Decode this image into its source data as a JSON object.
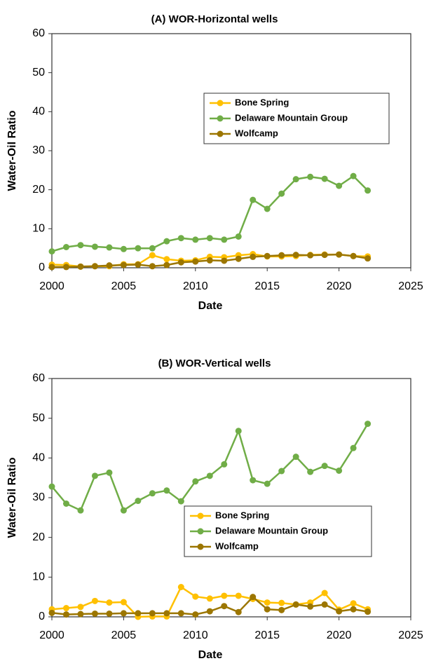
{
  "chart_data": [
    {
      "type": "line",
      "title": "(A) WOR-Horizontal wells",
      "x_label": "Date",
      "y_label": "Water-Oil Ratio",
      "x": [
        2000,
        2001,
        2002,
        2003,
        2004,
        2005,
        2006,
        2007,
        2008,
        2009,
        2010,
        2011,
        2012,
        2013,
        2014,
        2015,
        2016,
        2017,
        2018,
        2019,
        2020,
        2021,
        2022
      ],
      "series": [
        {
          "name": "Bone Spring",
          "color": "#ffc000",
          "values": [
            0.8,
            0.7,
            0.3,
            0.4,
            0.4,
            0.9,
            0.9,
            3.2,
            2.2,
            1.8,
            1.9,
            2.8,
            2.7,
            3.2,
            3.5,
            2.9,
            2.9,
            3.0,
            3.3,
            3.4,
            3.4,
            3.0,
            2.9
          ]
        },
        {
          "name": "Delaware Mountain Group",
          "color": "#70ad47",
          "values": [
            4.2,
            5.3,
            5.8,
            5.4,
            5.2,
            4.8,
            5.0,
            5.0,
            6.8,
            7.6,
            7.2,
            7.6,
            7.2,
            8.0,
            17.4,
            15.1,
            19.0,
            22.7,
            23.3,
            22.8,
            21.0,
            23.5,
            19.8
          ]
        },
        {
          "name": "Wolfcamp",
          "color": "#9c7600",
          "values": [
            0.2,
            0.2,
            0.3,
            0.4,
            0.6,
            0.7,
            0.8,
            0.4,
            0.7,
            1.4,
            1.6,
            1.9,
            1.8,
            2.3,
            2.8,
            3.0,
            3.2,
            3.3,
            3.2,
            3.3,
            3.4,
            3.0,
            2.4
          ]
        }
      ],
      "xlim": [
        2000,
        2025
      ],
      "xticks": [
        2000,
        2005,
        2010,
        2015,
        2020,
        2025
      ],
      "ylim": [
        0,
        60
      ],
      "yticks": [
        0,
        10,
        20,
        30,
        40,
        50,
        60
      ],
      "legend": "upper right"
    },
    {
      "type": "line",
      "title": "(B) WOR-Vertical wells",
      "x_label": "Date",
      "y_label": "Water-Oil Ratio",
      "x": [
        2000,
        2001,
        2002,
        2003,
        2004,
        2005,
        2006,
        2007,
        2008,
        2009,
        2010,
        2011,
        2012,
        2013,
        2014,
        2015,
        2016,
        2017,
        2018,
        2019,
        2020,
        2021,
        2022
      ],
      "series": [
        {
          "name": "Bone Spring",
          "color": "#ffc000",
          "values": [
            1.9,
            2.2,
            2.5,
            4.0,
            3.6,
            3.7,
            0,
            0.1,
            0.1,
            7.5,
            5.1,
            4.6,
            5.3,
            5.3,
            4.5,
            3.6,
            3.5,
            3.1,
            3.6,
            6.0,
            1.8,
            3.4,
            1.9
          ]
        },
        {
          "name": "Delaware Mountain Group",
          "color": "#70ad47",
          "values": [
            32.8,
            28.5,
            26.8,
            35.5,
            36.3,
            26.8,
            29.2,
            31.1,
            31.8,
            29.1,
            34.1,
            35.5,
            38.4,
            46.8,
            34.4,
            33.5,
            36.7,
            40.3,
            36.5,
            38.0,
            36.8,
            42.5,
            48.6
          ]
        },
        {
          "name": "Wolfcamp",
          "color": "#9c7600",
          "values": [
            1.0,
            0.6,
            0.7,
            0.8,
            0.8,
            0.9,
            0.9,
            0.9,
            0.9,
            0.9,
            0.6,
            1.4,
            2.7,
            1.2,
            5.0,
            1.9,
            1.7,
            3.1,
            2.6,
            3.1,
            1.4,
            1.9,
            1.3
          ]
        }
      ],
      "xlim": [
        2000,
        2025
      ],
      "xticks": [
        2000,
        2005,
        2010,
        2015,
        2020,
        2025
      ],
      "ylim": [
        0,
        60
      ],
      "yticks": [
        0,
        10,
        20,
        30,
        40,
        50,
        60
      ],
      "legend": "center right"
    }
  ]
}
